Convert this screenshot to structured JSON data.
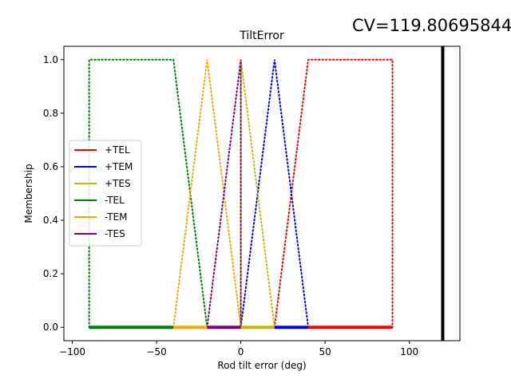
{
  "annotation_text": "CV=119.80695844",
  "chart_data": {
    "type": "line",
    "title": "TiltError",
    "xlabel": "Rod tilt error (deg)",
    "ylabel": "Membership",
    "xlim": [
      -105,
      130
    ],
    "ylim": [
      -0.05,
      1.05
    ],
    "xticks": [
      -100,
      -50,
      0,
      50,
      100
    ],
    "xtick_labels": [
      "−100",
      "−50",
      "0",
      "50",
      "100"
    ],
    "yticks": [
      0.0,
      0.2,
      0.4,
      0.6,
      0.8,
      1.0
    ],
    "ytick_labels": [
      "0.0",
      "0.2",
      "0.4",
      "0.6",
      "0.8",
      "1.0"
    ],
    "grid": false,
    "legend_position": "center-left",
    "series": [
      {
        "name": "+TEL",
        "color": "#ff0000",
        "x": [
          20,
          40,
          90,
          90
        ],
        "y": [
          0,
          1,
          1,
          0
        ]
      },
      {
        "name": "+TEM",
        "color": "#0000ff",
        "x": [
          0,
          20,
          40
        ],
        "y": [
          0,
          1,
          0
        ]
      },
      {
        "name": "+TES",
        "color": "#bfbf00",
        "x": [
          0,
          0,
          20
        ],
        "y": [
          0,
          1,
          0
        ]
      },
      {
        "name": "-TEL",
        "color": "#008000",
        "x": [
          -90,
          -90,
          -40,
          -20
        ],
        "y": [
          0,
          1,
          1,
          0
        ]
      },
      {
        "name": "-TEM",
        "color": "#ffa500",
        "x": [
          -40,
          -20,
          0
        ],
        "y": [
          0,
          1,
          0
        ]
      },
      {
        "name": "-TES",
        "color": "#800080",
        "x": [
          -20,
          0,
          0
        ],
        "y": [
          0,
          1,
          0
        ]
      }
    ],
    "baseline_segments": [
      {
        "series": "-TEL",
        "x_range": [
          -90,
          -40
        ]
      },
      {
        "series": "-TEM",
        "x_range": [
          -40,
          -20
        ]
      },
      {
        "series": "-TES",
        "x_range": [
          -20,
          0
        ]
      },
      {
        "series": "+TES",
        "x_range": [
          0,
          20
        ]
      },
      {
        "series": "+TEM",
        "x_range": [
          20,
          40
        ]
      },
      {
        "series": "+TEL",
        "x_range": [
          40,
          90
        ]
      }
    ],
    "current_value": {
      "x": 119.80695844,
      "color": "#000000"
    }
  }
}
